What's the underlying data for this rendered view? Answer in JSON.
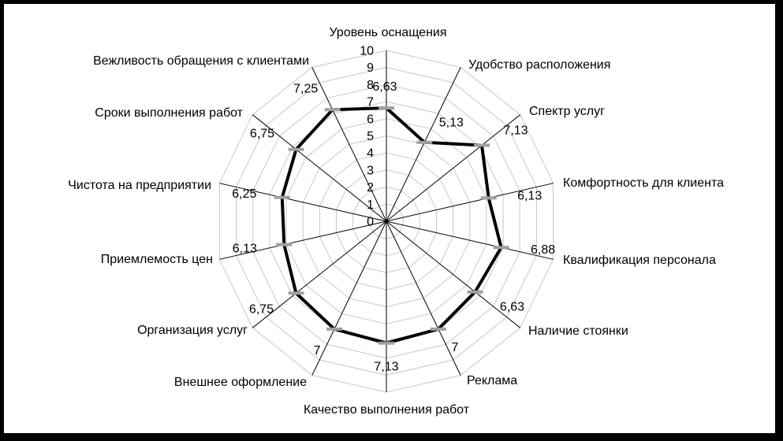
{
  "chart_data": {
    "type": "radar",
    "title": "",
    "legend": false,
    "grid": true,
    "categories": [
      "Уровень оснащения",
      "Удобство расположения",
      "Спектр услуг",
      "Комфортность для клиента",
      "Квалификация персонала",
      "Наличие стоянки",
      "Реклама",
      "Качество выполнения работ",
      "Внешнее оформление",
      "Организация услуг",
      "Приемлемость цен",
      "Чистота на предприятии",
      "Сроки выполнения работ",
      "Вежливость обращения с клиентами"
    ],
    "series": [
      {
        "values": [
          6.63,
          5.13,
          7.13,
          6.13,
          6.88,
          6.63,
          7,
          7.13,
          7,
          6.75,
          6.13,
          6.25,
          6.75,
          7.25
        ],
        "value_labels": [
          "6,63",
          "5,13",
          "7,13",
          "6,13",
          "6,88",
          "6,63",
          "7",
          "7,13",
          "7",
          "6,75",
          "6,13",
          "6,25",
          "6,75",
          "7,25"
        ]
      }
    ],
    "axis": {
      "min": 0,
      "max": 10,
      "step": 1,
      "tick_labels": [
        "0",
        "1",
        "2",
        "3",
        "4",
        "5",
        "6",
        "7",
        "8",
        "9",
        "10"
      ]
    },
    "colors": {
      "series_line": "#000000",
      "marker": "#a0a0a0",
      "gridline": "#c8c8c8",
      "spoke": "#000000",
      "text": "#000000",
      "background": "#ffffff",
      "frame": "#000000"
    }
  }
}
